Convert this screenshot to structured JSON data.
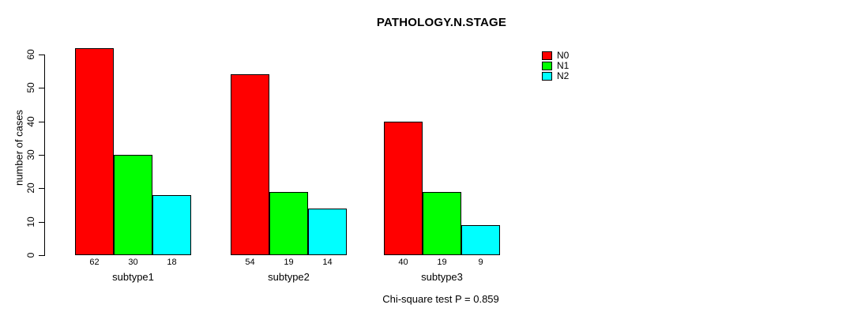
{
  "chart_data": {
    "type": "bar",
    "grouped": true,
    "title": "PATHOLOGY.N.STAGE",
    "xlabel": "",
    "ylabel": "number of cases",
    "categories": [
      "subtype1",
      "subtype2",
      "subtype3"
    ],
    "series": [
      {
        "name": "N0",
        "color": "#ff0000",
        "values": [
          62,
          54,
          40
        ]
      },
      {
        "name": "N1",
        "color": "#00ff00",
        "values": [
          30,
          19,
          19
        ]
      },
      {
        "name": "N2",
        "color": "#00ffff",
        "values": [
          18,
          14,
          9
        ]
      }
    ],
    "bar_value_labels": [
      [
        "62",
        "30",
        "18"
      ],
      [
        "54",
        "19",
        "14"
      ],
      [
        "40",
        "19",
        "9"
      ]
    ],
    "yticks": [
      0,
      10,
      20,
      30,
      40,
      50,
      60
    ],
    "ylim": [
      0,
      62
    ],
    "grid": false,
    "legend_position": "top-right",
    "annotation": "Chi-square test P = 0.859"
  }
}
